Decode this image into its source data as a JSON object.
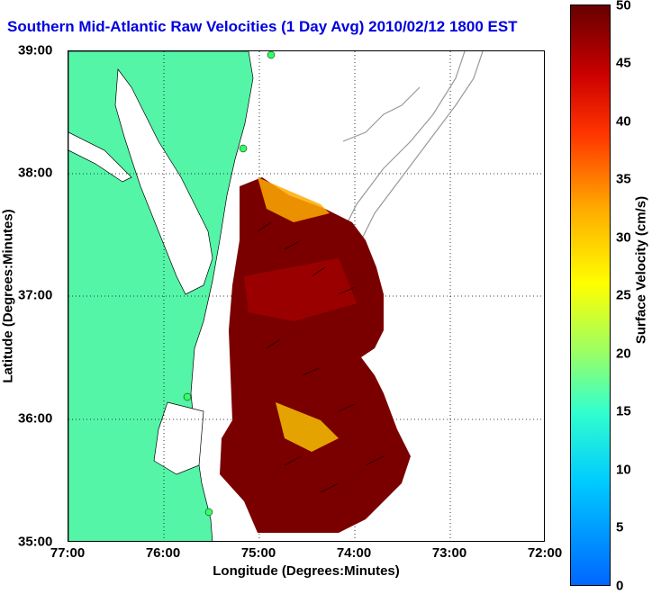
{
  "title": "Southern Mid-Atlantic Raw Velocities (1 Day Avg) 2010/02/12 1800 EST",
  "xaxis": {
    "label": "Longitude (Degrees:Minutes)",
    "ticks": [
      "77:00",
      "76:00",
      "75:00",
      "74:00",
      "73:00",
      "72:00"
    ]
  },
  "yaxis": {
    "label": "Latitude (Degrees:Minutes)",
    "ticks": [
      "39:00",
      "38:00",
      "37:00",
      "36:00",
      "35:00"
    ]
  },
  "colorbar": {
    "label": "Surface Velocity (cm/s)",
    "ticks": [
      "50",
      "45",
      "40",
      "35",
      "30",
      "25",
      "20",
      "15",
      "10",
      "5",
      "0"
    ]
  },
  "colors": {
    "land": "#55f5a8",
    "title": "#0000e0",
    "bathymetry": "#999999",
    "field_dark": "#5a0000",
    "field_mid": "#cc1100",
    "field_light": "#ffcc00"
  }
}
